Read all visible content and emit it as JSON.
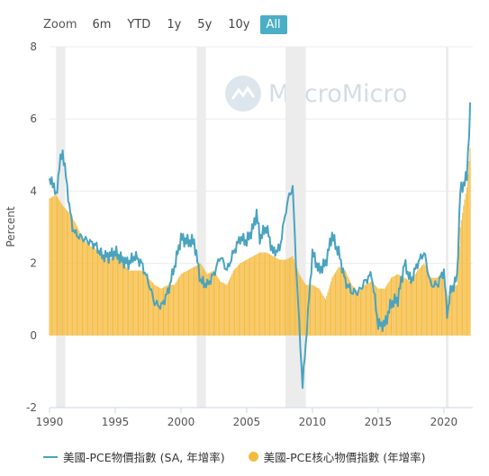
{
  "toolbar": {
    "zoom_label": "Zoom",
    "buttons": [
      "6m",
      "YTD",
      "1y",
      "5y",
      "10y",
      "All"
    ],
    "active": "All"
  },
  "watermark": {
    "text": "MacroMicro"
  },
  "legend": {
    "headline": "美國-PCE物價指數 (SA, 年增率)",
    "core": "美國-PCE核心物價指數 (年增率)"
  },
  "colors": {
    "headline": "#4aa3bf",
    "core": "#f5bb3f",
    "recession": "#ececec",
    "accent": "#4aaec5"
  },
  "chart_data": {
    "type": "line",
    "ylabel": "Percent",
    "ylim": [
      -2,
      8
    ],
    "yticks": [
      -2,
      0,
      2,
      4,
      6,
      8
    ],
    "xlim": [
      1990,
      2022.2
    ],
    "xticks": [
      1990,
      1995,
      2000,
      2005,
      2010,
      2015,
      2020
    ],
    "recessions": [
      [
        1990.5,
        1991.2
      ],
      [
        2001.2,
        2001.9
      ],
      [
        2007.95,
        2009.5
      ],
      [
        2020.15,
        2020.35
      ]
    ],
    "series": [
      {
        "name": "美國-PCE物價指數 (SA, 年增率)",
        "style": "line",
        "x": [
          1990.0,
          1990.25,
          1990.5,
          1990.75,
          1991.0,
          1991.25,
          1991.5,
          1991.75,
          1992.0,
          1992.5,
          1993.0,
          1993.5,
          1994.0,
          1994.5,
          1995.0,
          1995.5,
          1996.0,
          1996.5,
          1997.0,
          1997.5,
          1998.0,
          1998.5,
          1999.0,
          1999.5,
          2000.0,
          2000.5,
          2001.0,
          2001.5,
          2002.0,
          2002.5,
          2003.0,
          2003.5,
          2004.0,
          2004.5,
          2005.0,
          2005.5,
          2005.75,
          2006.0,
          2006.5,
          2007.0,
          2007.5,
          2008.0,
          2008.25,
          2008.5,
          2008.75,
          2009.0,
          2009.25,
          2009.5,
          2010.0,
          2010.5,
          2011.0,
          2011.5,
          2011.75,
          2012.0,
          2012.5,
          2013.0,
          2013.5,
          2014.0,
          2014.5,
          2015.0,
          2015.5,
          2016.0,
          2016.5,
          2017.0,
          2017.5,
          2018.0,
          2018.5,
          2019.0,
          2019.5,
          2020.0,
          2020.25,
          2020.5,
          2021.0,
          2021.25,
          2021.5,
          2021.75,
          2022.0
        ],
        "values": [
          4.2,
          4.3,
          3.8,
          4.7,
          5.1,
          4.4,
          3.6,
          3.0,
          2.8,
          2.7,
          2.6,
          2.5,
          2.2,
          2.2,
          2.3,
          2.1,
          2.0,
          2.2,
          2.0,
          1.5,
          0.9,
          0.8,
          1.2,
          1.9,
          2.7,
          2.6,
          2.6,
          1.5,
          1.4,
          1.7,
          2.2,
          1.8,
          2.3,
          2.7,
          2.6,
          3.0,
          3.4,
          2.7,
          3.0,
          2.3,
          2.4,
          3.5,
          3.9,
          4.1,
          2.0,
          0.3,
          -1.4,
          -0.2,
          2.3,
          1.8,
          2.0,
          2.8,
          2.5,
          2.3,
          1.5,
          1.2,
          1.2,
          1.5,
          1.7,
          0.3,
          0.3,
          0.9,
          1.0,
          2.0,
          1.5,
          2.0,
          2.3,
          1.4,
          1.4,
          1.8,
          0.6,
          1.2,
          1.6,
          4.0,
          4.2,
          4.4,
          6.3
        ]
      },
      {
        "name": "美國-PCE核心物價指數 (年增率)",
        "style": "column",
        "x": [
          1990.0,
          1990.5,
          1991.0,
          1991.5,
          1992.0,
          1992.5,
          1993.0,
          1993.5,
          1994.0,
          1994.5,
          1995.0,
          1995.5,
          1996.0,
          1996.5,
          1997.0,
          1997.5,
          1998.0,
          1998.5,
          1999.0,
          1999.5,
          2000.0,
          2000.5,
          2001.0,
          2001.5,
          2002.0,
          2002.5,
          2003.0,
          2003.5,
          2004.0,
          2004.5,
          2005.0,
          2005.5,
          2006.0,
          2006.5,
          2007.0,
          2007.5,
          2008.0,
          2008.5,
          2009.0,
          2009.5,
          2010.0,
          2010.5,
          2011.0,
          2011.5,
          2012.0,
          2012.5,
          2013.0,
          2013.5,
          2014.0,
          2014.5,
          2015.0,
          2015.5,
          2016.0,
          2016.5,
          2017.0,
          2017.5,
          2018.0,
          2018.5,
          2019.0,
          2019.5,
          2020.0,
          2020.25,
          2020.5,
          2021.0,
          2021.25,
          2021.5,
          2021.75,
          2022.0
        ],
        "values": [
          3.8,
          3.9,
          3.6,
          3.4,
          3.1,
          2.7,
          2.5,
          2.4,
          2.2,
          2.1,
          2.2,
          2.1,
          1.8,
          1.8,
          1.8,
          1.6,
          1.4,
          1.3,
          1.4,
          1.4,
          1.7,
          1.8,
          1.9,
          2.0,
          1.7,
          1.8,
          1.5,
          1.4,
          1.8,
          2.0,
          2.1,
          2.2,
          2.3,
          2.3,
          2.2,
          2.1,
          2.1,
          2.2,
          1.7,
          1.4,
          1.4,
          1.3,
          1.0,
          1.6,
          1.9,
          1.8,
          1.4,
          1.2,
          1.4,
          1.5,
          1.3,
          1.3,
          1.6,
          1.7,
          1.6,
          1.5,
          1.8,
          2.0,
          1.6,
          1.6,
          1.8,
          1.0,
          1.3,
          1.4,
          3.0,
          3.6,
          4.1,
          5.2
        ]
      }
    ]
  }
}
